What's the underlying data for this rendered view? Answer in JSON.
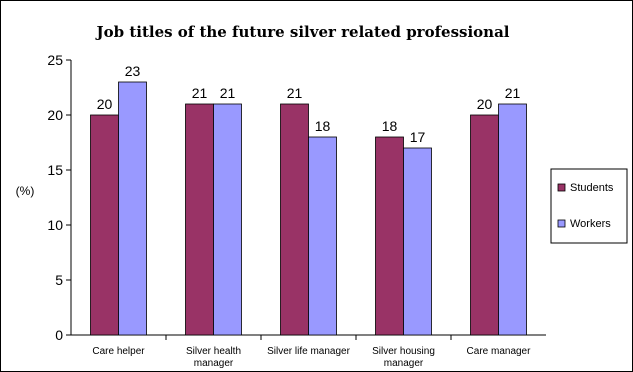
{
  "chart_data": {
    "type": "bar",
    "title": "Job titles of the future silver related professional",
    "ylabel": "(%)",
    "xlabel": "",
    "ylim": [
      0,
      25
    ],
    "yticks": [
      0,
      5,
      10,
      15,
      20,
      25
    ],
    "grid": false,
    "legend_position": "right",
    "categories": [
      [
        "Care helper"
      ],
      [
        "Silver health",
        "manager"
      ],
      [
        "Silver life manager"
      ],
      [
        "Silver housing",
        "manager"
      ],
      [
        "Care manager"
      ]
    ],
    "series": [
      {
        "name": "Students",
        "color": "#993366",
        "values": [
          20,
          21,
          21,
          18,
          20
        ]
      },
      {
        "name": "Workers",
        "color": "#9999ff",
        "values": [
          23,
          21,
          18,
          17,
          21
        ]
      }
    ]
  }
}
